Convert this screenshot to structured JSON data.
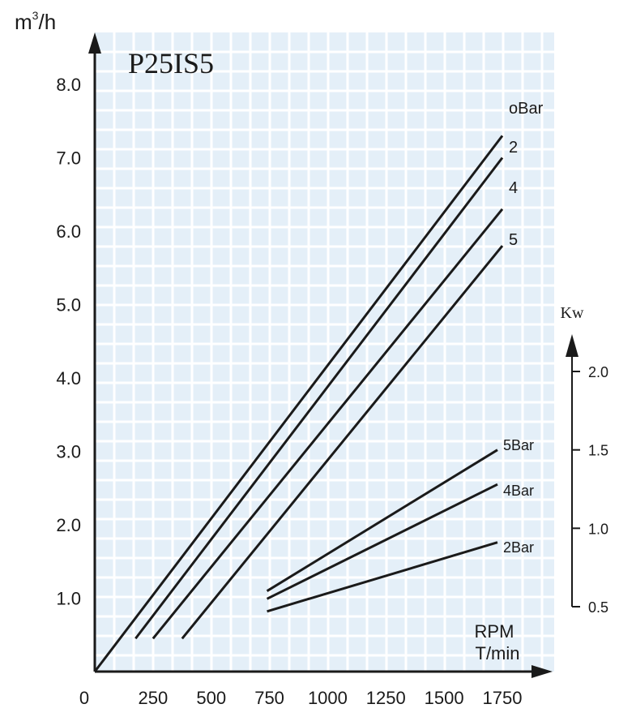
{
  "chart_data": {
    "type": "line",
    "title": "P25IS5",
    "x_axis": {
      "label_top": "RPM",
      "label_bottom": "T/min",
      "range": [
        0,
        1750
      ],
      "ticks": [
        "0",
        "250",
        "500",
        "750",
        "1000",
        "1250",
        "1500",
        "1750"
      ]
    },
    "y_axis": {
      "label_base": "m",
      "label_sup": "3",
      "label_rest": "/h",
      "range": [
        0,
        8.0
      ],
      "ticks": [
        "8.0",
        "7.0",
        "6.0",
        "5.0",
        "4.0",
        "3.0",
        "2.0",
        "1.0"
      ]
    },
    "y2_axis": {
      "label": "Kw",
      "range": [
        0.5,
        2.0
      ],
      "ticks": [
        "2.0",
        "1.5",
        "1.0",
        "0.5"
      ]
    },
    "grid": true,
    "flow_series": [
      {
        "label": "oBar",
        "x": [
          0,
          1750
        ],
        "y": [
          0,
          7.3
        ]
      },
      {
        "label": "2",
        "x": [
          175,
          1750
        ],
        "y": [
          0.45,
          7.0
        ]
      },
      {
        "label": "4",
        "x": [
          250,
          1750
        ],
        "y": [
          0.45,
          6.3
        ]
      },
      {
        "label": "5",
        "x": [
          375,
          1750
        ],
        "y": [
          0.45,
          5.8
        ]
      }
    ],
    "power_series": [
      {
        "label": "5Bar",
        "x": [
          750,
          1750
        ],
        "y": [
          0.6,
          1.5
        ]
      },
      {
        "label": "4Bar",
        "x": [
          750,
          1750
        ],
        "y": [
          0.55,
          1.28
        ]
      },
      {
        "label": "2Bar",
        "x": [
          750,
          1750
        ],
        "y": [
          0.47,
          0.91
        ]
      }
    ],
    "colors": {
      "plot_background": "#e4eff8",
      "grid": "#ffffff",
      "line": "#1a1a1a"
    }
  }
}
